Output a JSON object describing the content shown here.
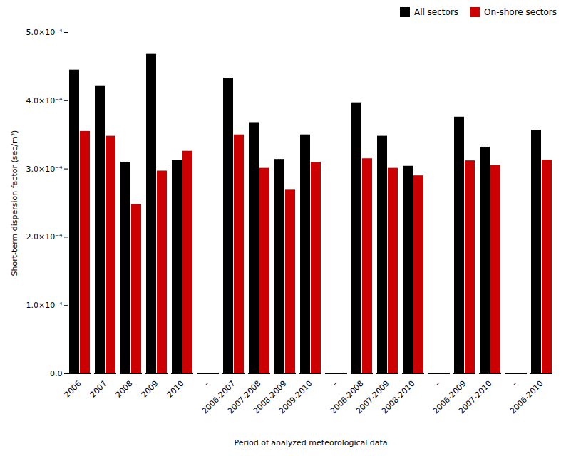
{
  "chart_data": {
    "type": "bar",
    "xlabel": "Period of analyzed meteorological data",
    "ylabel": "Short-term dispersion factor (sec/m³)",
    "categories": [
      "2006",
      "2007",
      "2008",
      "2009",
      "2010",
      "–",
      "2006-2007",
      "2007-2008",
      "2008-2009",
      "2009-2010",
      "–",
      "2006-2008",
      "2007-2009",
      "2008-2010",
      "–",
      "2006-2009",
      "2007-2010",
      "–",
      "2006-2010"
    ],
    "series": [
      {
        "name": "All sectors",
        "color": "#000000",
        "values": [
          0.000445,
          0.000422,
          0.00031,
          0.000468,
          0.000313,
          null,
          0.000433,
          0.000368,
          0.000314,
          0.00035,
          null,
          0.000397,
          0.000348,
          0.000304,
          null,
          0.000376,
          0.000332,
          null,
          0.000357
        ]
      },
      {
        "name": "On-shore sectors",
        "color": "#cc0000",
        "values": [
          0.000355,
          0.000348,
          0.000248,
          0.000297,
          0.000326,
          null,
          0.00035,
          0.000301,
          0.00027,
          0.00031,
          null,
          0.000315,
          0.000301,
          0.00029,
          null,
          0.000312,
          0.000305,
          null,
          0.000313
        ]
      }
    ],
    "ylim": [
      0,
      0.0005
    ],
    "yticks": [
      {
        "value": 0.0,
        "label": "0.0"
      },
      {
        "value": 0.0001,
        "label": "1.0×10⁻⁴"
      },
      {
        "value": 0.0002,
        "label": "2.0×10⁻⁴"
      },
      {
        "value": 0.0003,
        "label": "3.0×10⁻⁴"
      },
      {
        "value": 0.0004,
        "label": "4.0×10⁻⁴"
      },
      {
        "value": 0.0005,
        "label": "5.0×10⁻⁴"
      }
    ],
    "grid": false,
    "legend": "upper right"
  }
}
